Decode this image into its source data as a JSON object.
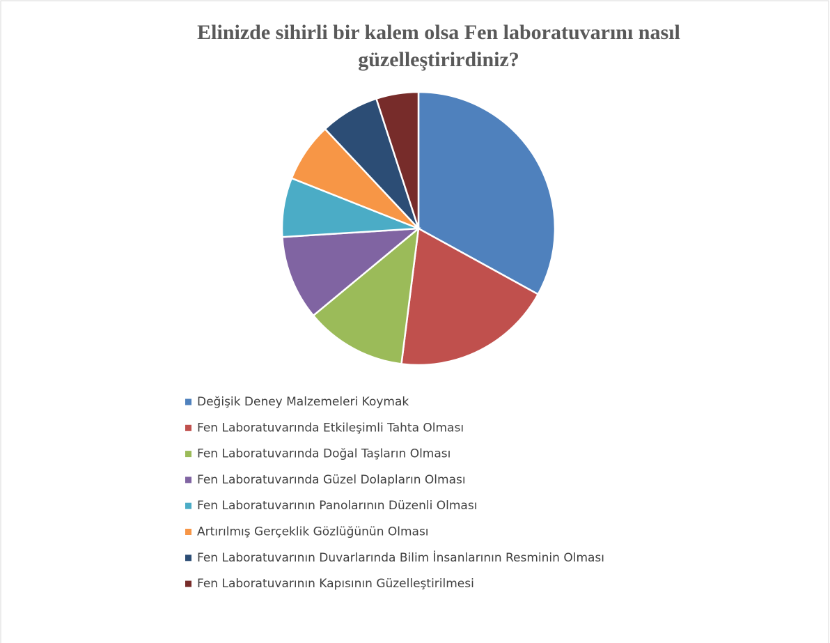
{
  "chart_data": {
    "type": "pie",
    "title": [
      "Elinizde sihirli bir kalem olsa Fen laboratuvarını nasıl",
      "güzelleştirirdiniz?"
    ],
    "categories": [
      "Değişik Deney Malzemeleri Koymak",
      "Fen Laboratuvarında Etkileşimli Tahta Olması",
      "Fen Laboratuvarında Doğal Taşların Olması",
      "Fen Laboratuvarında Güzel Dolapların Olması",
      "Fen Laboratuvarının Panolarının Düzenli Olması",
      "Artırılmış Gerçeklik Gözlüğünün Olması",
      "Fen Laboratuvarının Duvarlarında Bilim İnsanlarının Resminin Olması",
      "Fen Laboratuvarının Kapısının Güzelleştirilmesi"
    ],
    "values": [
      33,
      19,
      12,
      10,
      7,
      7,
      7,
      5
    ],
    "colors": [
      "#4f81bd",
      "#c0504d",
      "#9bbb59",
      "#8064a2",
      "#4bacc6",
      "#f79646",
      "#2c4d75",
      "#772c2a"
    ],
    "legend": "bottom"
  }
}
